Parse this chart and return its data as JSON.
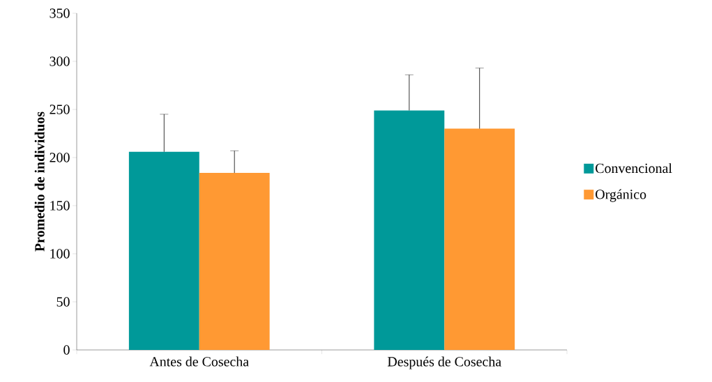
{
  "chart_data": {
    "type": "bar",
    "ylabel": "Promedio de individuos",
    "categories": [
      "Antes de Cosecha",
      "Después de Cosecha"
    ],
    "series": [
      {
        "name": "Convencional",
        "color": "#009999",
        "values": [
          206,
          249
        ],
        "errors": [
          [
            206,
            245
          ],
          [
            249,
            286
          ]
        ]
      },
      {
        "name": "Orgánico",
        "color": "#ff9933",
        "values": [
          184,
          230
        ],
        "errors": [
          [
            184,
            207
          ],
          [
            230,
            293
          ]
        ]
      }
    ],
    "ylim": [
      0,
      350
    ],
    "yticks": [
      0,
      50,
      100,
      150,
      200,
      250,
      300,
      350
    ],
    "grid": false,
    "legend": "right"
  }
}
